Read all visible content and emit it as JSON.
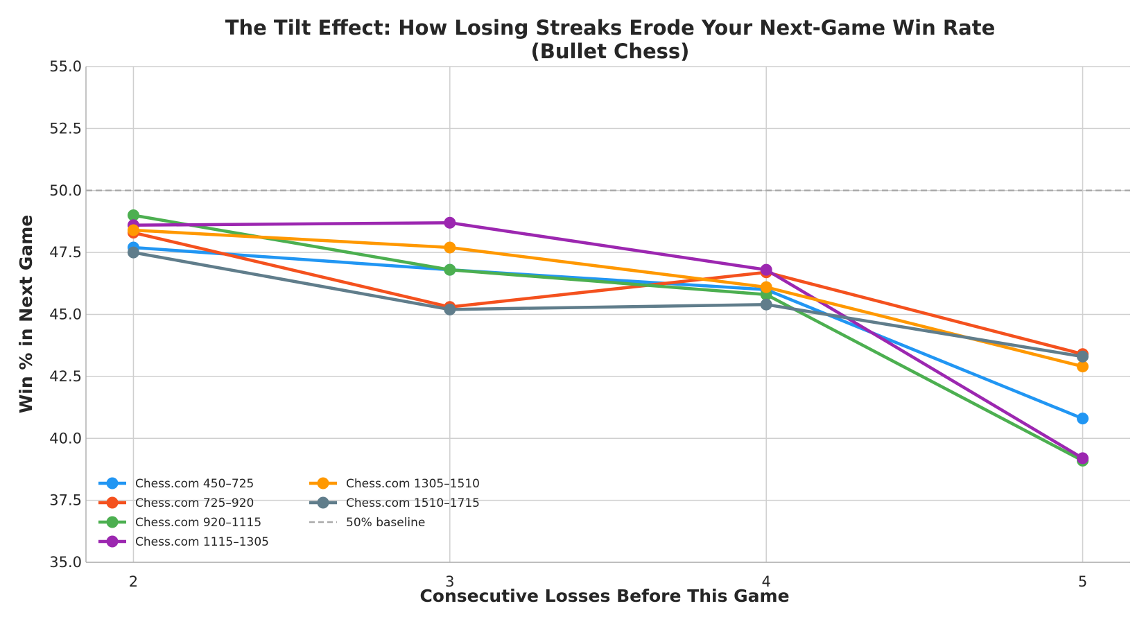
{
  "chart_data": {
    "type": "line",
    "title": "The Tilt Effect: How Losing Streaks Erode Your Next-Game Win Rate",
    "subtitle": "(Bullet Chess)",
    "xlabel": "Consecutive Losses Before This Game",
    "ylabel": "Win % in Next Game",
    "x": [
      2,
      3,
      4,
      5
    ],
    "ylim": [
      35.0,
      55.0
    ],
    "yticks": [
      "35.0",
      "37.5",
      "40.0",
      "42.5",
      "45.0",
      "47.5",
      "50.0",
      "52.5",
      "55.0"
    ],
    "xticks": [
      "2",
      "3",
      "4",
      "5"
    ],
    "grid": true,
    "legend_position": "lower-left",
    "baseline": {
      "name": "50% baseline",
      "value": 50.0,
      "color": "#aaaaaa"
    },
    "series": [
      {
        "name": "Chess.com 450–725",
        "color": "#2196f3",
        "values": [
          47.7,
          46.8,
          46.0,
          40.8
        ]
      },
      {
        "name": "Chess.com 725–920",
        "color": "#f4511e",
        "values": [
          48.3,
          45.3,
          46.7,
          43.4
        ]
      },
      {
        "name": "Chess.com 920–1115",
        "color": "#4caf50",
        "values": [
          49.0,
          46.8,
          45.8,
          39.1
        ]
      },
      {
        "name": "Chess.com 1115–1305",
        "color": "#9c27b0",
        "values": [
          48.6,
          48.7,
          46.8,
          39.2
        ]
      },
      {
        "name": "Chess.com 1305–1510",
        "color": "#ff9800",
        "values": [
          48.4,
          47.7,
          46.1,
          42.9
        ]
      },
      {
        "name": "Chess.com 1510–1715",
        "color": "#607d8b",
        "values": [
          47.5,
          45.2,
          45.4,
          43.3
        ]
      }
    ]
  }
}
